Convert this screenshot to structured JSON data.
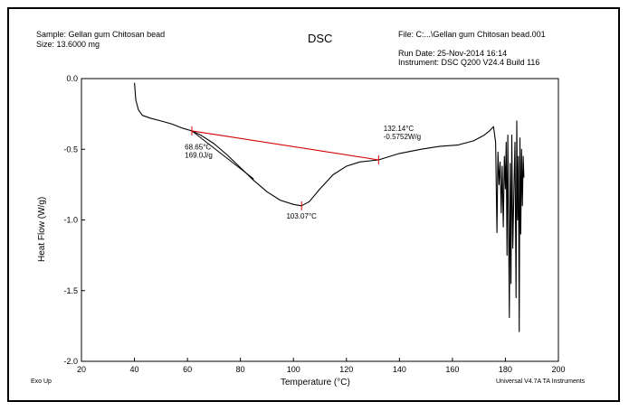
{
  "header": {
    "sample": "Sample: Gellan gum Chitosan bead",
    "size": "Size:  13.6000 mg",
    "title": "DSC",
    "file": "File: C:...\\Gellan gum Chitosan bead.001",
    "run_date": "Run Date: 25-Nov-2014 16:14",
    "instrument": "Instrument: DSC Q200 V24.4 Build 116"
  },
  "footer": {
    "exo": "Exo Up",
    "software": "Universal V4.7A TA Instruments"
  },
  "colors": {
    "curve": "#000000",
    "baseline": "#d40000"
  },
  "chart_data": {
    "type": "line",
    "title": "DSC",
    "xlabel": "Temperature (°C)",
    "ylabel": "Heat Flow (W/g)",
    "xlim": [
      20,
      200
    ],
    "ylim": [
      -2.0,
      0.0
    ],
    "xticks": [
      20,
      40,
      60,
      80,
      100,
      120,
      140,
      160,
      180,
      200
    ],
    "yticks": [
      0.0,
      -0.5,
      -1.0,
      -1.5,
      -2.0
    ],
    "xtick_labels": [
      "20",
      "40",
      "60",
      "80",
      "100",
      "120",
      "140",
      "160",
      "180",
      "200"
    ],
    "ytick_labels": [
      "0.0",
      "-0.5",
      "-1.0",
      "-1.5",
      "-2.0"
    ],
    "grid": false,
    "series": [
      {
        "x": [
          40.0,
          40.5,
          41.5,
          43,
          46,
          50,
          54,
          58,
          61.65,
          65,
          70,
          75,
          80,
          85,
          90,
          95,
          100,
          103.07,
          106,
          110,
          115,
          120,
          125,
          132.14,
          140,
          148,
          155,
          162,
          168,
          172,
          174,
          175.5,
          176.3,
          176.8,
          177.2,
          177.6,
          178.0,
          178.4,
          178.8,
          179.2,
          179.6,
          180.0,
          180.3,
          180.6,
          180.9,
          181.2,
          181.5,
          181.8,
          182.1,
          182.4,
          182.8,
          183.2,
          183.6,
          184.0,
          184.3,
          184.6,
          184.9,
          185.2,
          185.5,
          185.8,
          186.1,
          186.4,
          186.7,
          187.0
        ],
        "y": [
          -0.03,
          -0.15,
          -0.22,
          -0.26,
          -0.28,
          -0.3,
          -0.32,
          -0.35,
          -0.37,
          -0.4,
          -0.46,
          -0.54,
          -0.63,
          -0.72,
          -0.8,
          -0.86,
          -0.89,
          -0.9,
          -0.87,
          -0.78,
          -0.68,
          -0.62,
          -0.59,
          -0.575,
          -0.53,
          -0.5,
          -0.48,
          -0.47,
          -0.44,
          -0.4,
          -0.37,
          -0.34,
          -0.45,
          -1.09,
          -0.52,
          -0.75,
          -0.59,
          -0.95,
          -0.62,
          -1.05,
          -0.55,
          -0.78,
          -0.45,
          -1.25,
          -0.4,
          -1.08,
          -1.69,
          -0.6,
          -1.45,
          -0.4,
          -1.2,
          -0.8,
          -0.45,
          -1.55,
          -0.3,
          -1.0,
          -0.55,
          -1.79,
          -0.42,
          -1.1,
          -0.5,
          -0.9,
          -0.55,
          -0.7
        ]
      }
    ],
    "baseline": {
      "x": [
        61.65,
        132.14
      ],
      "y": [
        -0.37,
        -0.575
      ]
    },
    "tangent": {
      "x": [
        61.65,
        85
      ],
      "y": [
        -0.37,
        -0.71
      ]
    },
    "annotations": [
      {
        "line1": "68.65°C",
        "line2": "169.0J/g",
        "x": 59,
        "y": -0.5
      },
      {
        "line1": "103.07°C",
        "line2": "",
        "x": 103.07,
        "y": -0.99
      },
      {
        "line1": "132.14°C",
        "line2": "-0.5752W/g",
        "x": 134,
        "y": -0.37
      }
    ],
    "markers": [
      {
        "x": 61.65,
        "y": -0.37
      },
      {
        "x": 103.07,
        "y": -0.9
      },
      {
        "x": 132.14,
        "y": -0.575
      }
    ]
  }
}
